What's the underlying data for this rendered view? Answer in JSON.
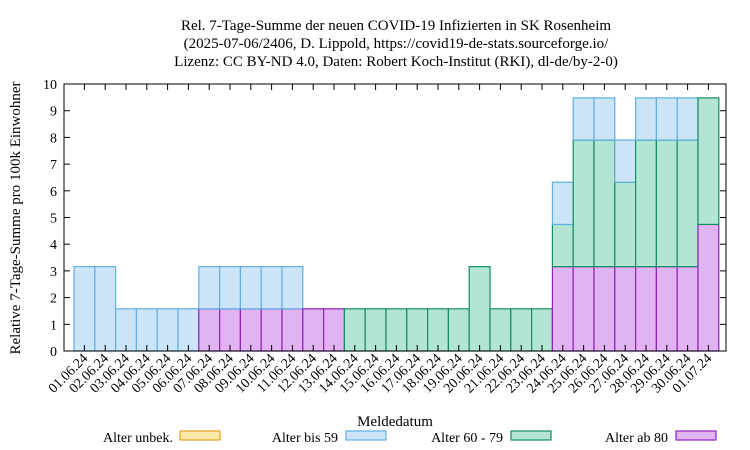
{
  "chart_data": {
    "type": "bar",
    "stacked": true,
    "title_lines": [
      "Rel. 7-Tage-Summe der neuen COVID-19 Infizierten in SK Rosenheim",
      "(2025-07-06/2406, D. Lippold, https://covid19-de-stats.sourceforge.io/",
      "Lizenz: CC BY-ND 4.0, Daten: Robert Koch-Institut (RKI), dl-de/by-2-0)"
    ],
    "xlabel": "Meldedatum",
    "ylabel": "Relative 7-Tage-Summe pro 100k Einwohner",
    "ylim": [
      0,
      10
    ],
    "yticks": [
      "0",
      "1",
      "2",
      "3",
      "4",
      "5",
      "6",
      "7",
      "8",
      "9",
      "10"
    ],
    "grid": false,
    "legend_position": "bottom",
    "categories": [
      "01.06.24",
      "02.06.24",
      "03.06.24",
      "04.06.24",
      "05.06.24",
      "06.06.24",
      "07.06.24",
      "08.06.24",
      "09.06.24",
      "10.06.24",
      "11.06.24",
      "12.06.24",
      "13.06.24",
      "14.06.24",
      "15.06.24",
      "16.06.24",
      "17.06.24",
      "18.06.24",
      "19.06.24",
      "20.06.24",
      "21.06.24",
      "22.06.24",
      "23.06.24",
      "24.06.24",
      "25.06.24",
      "26.06.24",
      "27.06.24",
      "28.06.24",
      "29.06.24",
      "30.06.24",
      "01.07.24"
    ],
    "series": [
      {
        "name": "Alter unbek.",
        "fill": "#fde9a8",
        "stroke": "#e0a020",
        "values": [
          0,
          0,
          0,
          0,
          0,
          0,
          0,
          0,
          0,
          0,
          0,
          0,
          0,
          0,
          0,
          0,
          0,
          0,
          0,
          0,
          0,
          0,
          0,
          0,
          0,
          0,
          0,
          0,
          0,
          0,
          0
        ]
      },
      {
        "name": "Alter ab 80",
        "fill": "#e0b4f0",
        "stroke": "#9020c0",
        "values": [
          0,
          0,
          0,
          0,
          0,
          0,
          1.58,
          1.58,
          1.58,
          1.58,
          1.58,
          1.58,
          1.58,
          0,
          0,
          0,
          0,
          0,
          0,
          0,
          0,
          0,
          0,
          3.16,
          3.16,
          3.16,
          3.16,
          3.16,
          3.16,
          3.16,
          4.74
        ]
      },
      {
        "name": "Alter 60 - 79",
        "fill": "#b4e4d4",
        "stroke": "#109060",
        "values": [
          0,
          0,
          0,
          0,
          0,
          0,
          0,
          0,
          0,
          0,
          0,
          0,
          0,
          1.58,
          1.58,
          1.58,
          1.58,
          1.58,
          1.58,
          3.16,
          1.58,
          1.58,
          1.58,
          1.58,
          4.74,
          4.74,
          3.16,
          4.74,
          4.74,
          4.74,
          4.74
        ]
      },
      {
        "name": "Alter bis 59",
        "fill": "#cce4f8",
        "stroke": "#60b0e0",
        "values": [
          3.16,
          3.16,
          1.58,
          1.58,
          1.58,
          1.58,
          1.58,
          1.58,
          1.58,
          1.58,
          1.58,
          0,
          0,
          0,
          0,
          0,
          0,
          0,
          0,
          0,
          0,
          0,
          0,
          1.58,
          1.58,
          1.58,
          1.58,
          1.58,
          1.58,
          1.58,
          0
        ]
      }
    ],
    "legend_order": [
      "Alter unbek.",
      "Alter bis 59",
      "Alter 60 - 79",
      "Alter ab 80"
    ]
  }
}
